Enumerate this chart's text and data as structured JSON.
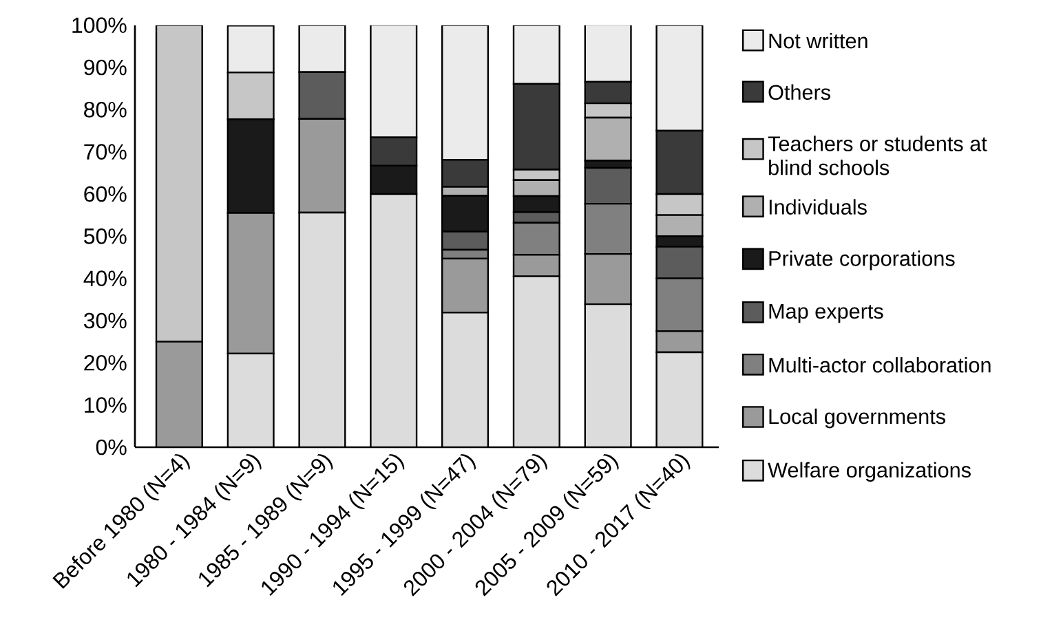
{
  "chart_data": {
    "type": "bar",
    "stacked": true,
    "categories": [
      "Before 1980 (N=4)",
      "1980 - 1984 (N=9)",
      "1985 - 1989 (N=9)",
      "1990 - 1994 (N=15)",
      "1995 - 1999 (N=47)",
      "2000 - 2004 (N=79)",
      "2005 - 2009 (N=59)",
      "2010 - 2017 (N=40)"
    ],
    "series": [
      {
        "name": "Welfare organizations",
        "color": "#dcdcdc",
        "values": [
          0,
          22.2,
          55.6,
          60,
          31.9,
          40.5,
          33.9,
          22.5
        ]
      },
      {
        "name": "Local governments",
        "color": "#9a9a9a",
        "values": [
          25,
          33.3,
          22.2,
          0,
          12.8,
          5.1,
          11.9,
          5
        ]
      },
      {
        "name": "Multi-actor collaboration",
        "color": "#808080",
        "values": [
          0,
          0,
          0,
          0,
          2.1,
          7.6,
          11.9,
          12.5
        ]
      },
      {
        "name": "Map experts",
        "color": "#5c5c5c",
        "values": [
          0,
          0,
          11.1,
          0,
          4.3,
          2.5,
          8.5,
          7.5
        ]
      },
      {
        "name": "Private corporations",
        "color": "#1a1a1a",
        "values": [
          0,
          22.2,
          0,
          6.7,
          8.5,
          3.8,
          1.7,
          2.5
        ]
      },
      {
        "name": "Individuals",
        "color": "#b0b0b0",
        "values": [
          0,
          0,
          0,
          0,
          2.1,
          3.8,
          10.2,
          5
        ]
      },
      {
        "name": "Teachers or students at blind schools",
        "color": "#c6c6c6",
        "values": [
          75,
          11.1,
          0,
          0,
          0,
          2.5,
          3.4,
          5
        ]
      },
      {
        "name": "Others",
        "color": "#3a3a3a",
        "values": [
          0,
          0,
          0,
          6.7,
          6.4,
          20.3,
          5.1,
          15
        ]
      },
      {
        "name": "Not written",
        "color": "#ebebeb",
        "values": [
          0,
          11.1,
          11.1,
          26.7,
          31.9,
          13.9,
          13.6,
          25
        ]
      }
    ],
    "ylim": [
      0,
      100
    ],
    "yticks": [
      {
        "value": 0,
        "label": "0%"
      },
      {
        "value": 10,
        "label": "10%"
      },
      {
        "value": 20,
        "label": "20%"
      },
      {
        "value": 30,
        "label": "30%"
      },
      {
        "value": 40,
        "label": "40%"
      },
      {
        "value": 50,
        "label": "50%"
      },
      {
        "value": 60,
        "label": "60%"
      },
      {
        "value": 70,
        "label": "70%"
      },
      {
        "value": 80,
        "label": "80%"
      },
      {
        "value": 90,
        "label": "90%"
      },
      {
        "value": 100,
        "label": "100%"
      }
    ],
    "grid": false,
    "legend": "right"
  }
}
